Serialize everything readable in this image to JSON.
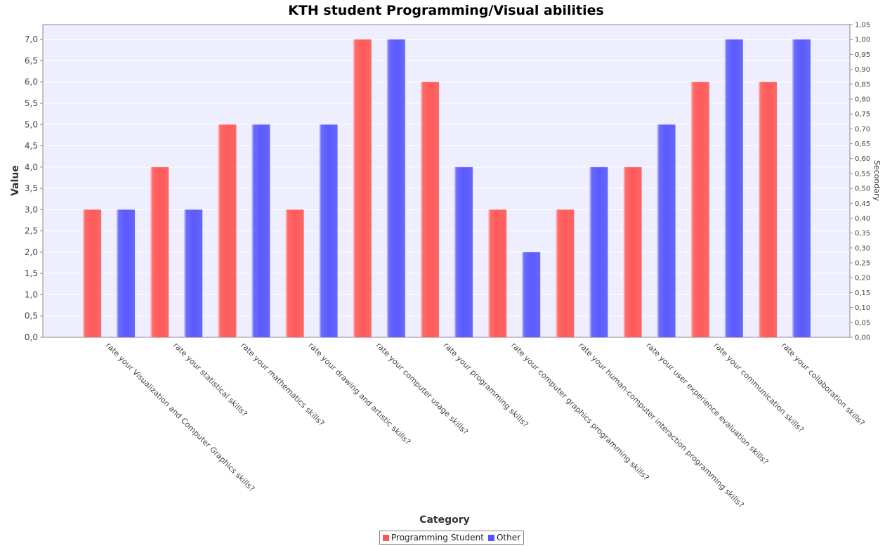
{
  "chart_data": {
    "type": "bar",
    "title": "KTH student Programming/Visual abilities",
    "xlabel": "Category",
    "ylabel": "Value",
    "y2label": "Secondary",
    "ylim": [
      0,
      7.35
    ],
    "y_ticks": [
      "0,0",
      "0,5",
      "1,0",
      "1,5",
      "2,0",
      "2,5",
      "3,0",
      "3,5",
      "4,0",
      "4,5",
      "5,0",
      "5,5",
      "6,0",
      "6,5",
      "7,0"
    ],
    "y2lim": [
      0,
      1.05
    ],
    "y2_ticks": [
      "0,00",
      "0,05",
      "0,10",
      "0,15",
      "0,20",
      "0,25",
      "0,30",
      "0,35",
      "0,40",
      "0,45",
      "0,50",
      "0,55",
      "0,60",
      "0,65",
      "0,70",
      "0,75",
      "0,80",
      "0,85",
      "0,90",
      "0,95",
      "1,00",
      "1,05"
    ],
    "categories": [
      "rate your Visualization and Computer Graphics skills?",
      "rate your statistical skills?",
      "rate your mathematics skills?",
      "rate your drawing and artistic skills?",
      "rate your computer usage skills?",
      "rate your programming skills?",
      "rate your computer graphics programming skills?",
      "rate your human-computer interaction programming skills?",
      "rate your user experience evaluation skills?",
      "rate your communication skills?",
      "rate your collaboration skills?"
    ],
    "series": [
      {
        "name": "Programming Student",
        "color": "#ff5555",
        "values": [
          3,
          4,
          5,
          3,
          7,
          6,
          3,
          3,
          4,
          6,
          6
        ]
      },
      {
        "name": "Other",
        "color": "#5555ff",
        "values": [
          3,
          3,
          5,
          5,
          7,
          4,
          2,
          4,
          5,
          7,
          7
        ]
      }
    ],
    "grid": true,
    "legend_position": "bottom-center",
    "plot_background": "#eeeeff"
  }
}
